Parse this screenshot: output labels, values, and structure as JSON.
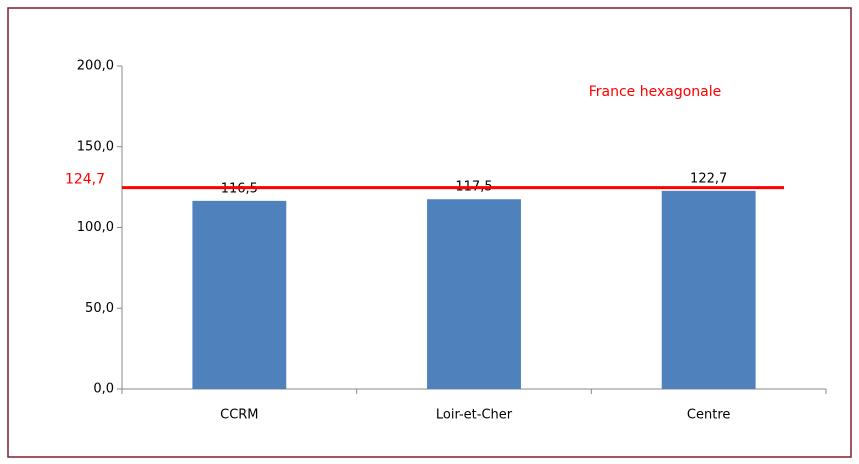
{
  "chart_data": {
    "type": "bar",
    "categories": [
      "CCRM",
      "Loir-et-Cher",
      "Centre"
    ],
    "values": [
      116.5,
      117.5,
      122.7
    ],
    "value_labels": [
      "116,5",
      "117,5",
      "122,7"
    ],
    "color": "#4f81bd",
    "ylim": [
      0,
      200
    ],
    "yticks": [
      {
        "value": 0,
        "label": "0,0"
      },
      {
        "value": 50,
        "label": "50,0"
      },
      {
        "value": 100,
        "label": "100,0"
      },
      {
        "value": 150,
        "label": "150,0"
      },
      {
        "value": 200,
        "label": "200,0"
      }
    ],
    "grid": false,
    "reference_line": {
      "value": 124.7,
      "label": "124,7",
      "name": "France hexagonale",
      "color": "#ff0000"
    }
  }
}
